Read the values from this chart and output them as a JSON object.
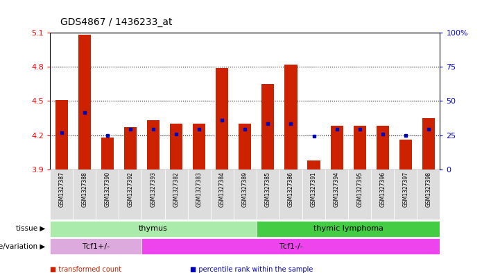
{
  "title": "GDS4867 / 1436233_at",
  "samples": [
    "GSM1327387",
    "GSM1327388",
    "GSM1327390",
    "GSM1327392",
    "GSM1327393",
    "GSM1327382",
    "GSM1327383",
    "GSM1327384",
    "GSM1327389",
    "GSM1327385",
    "GSM1327386",
    "GSM1327391",
    "GSM1327394",
    "GSM1327395",
    "GSM1327396",
    "GSM1327397",
    "GSM1327398"
  ],
  "red_values": [
    4.51,
    5.08,
    4.18,
    4.27,
    4.33,
    4.3,
    4.3,
    4.79,
    4.3,
    4.65,
    4.82,
    3.98,
    4.28,
    4.28,
    4.28,
    4.16,
    4.35
  ],
  "blue_values": [
    4.22,
    4.4,
    4.2,
    4.25,
    4.25,
    4.21,
    4.25,
    4.33,
    4.25,
    4.3,
    4.3,
    4.19,
    4.25,
    4.25,
    4.21,
    4.2,
    4.25
  ],
  "ylim_left": [
    3.9,
    5.1
  ],
  "ylim_right": [
    0,
    100
  ],
  "yticks_left": [
    3.9,
    4.2,
    4.5,
    4.8,
    5.1
  ],
  "yticks_right": [
    0,
    25,
    50,
    75,
    100
  ],
  "grid_lines": [
    4.2,
    4.5,
    4.8
  ],
  "tissue_groups": [
    {
      "label": "thymus",
      "start": 0,
      "end": 9,
      "color": "#aaeaaa"
    },
    {
      "label": "thymic lymphoma",
      "start": 9,
      "end": 17,
      "color": "#44cc44"
    }
  ],
  "genotype_groups": [
    {
      "label": "Tcf1+/-",
      "start": 0,
      "end": 4,
      "color": "#ddaadd"
    },
    {
      "label": "Tcf1-/-",
      "start": 4,
      "end": 17,
      "color": "#ee44ee"
    }
  ],
  "bar_color": "#cc2200",
  "dot_color": "#0000bb",
  "base_value": 3.9,
  "bar_width": 0.55,
  "tick_bg_color": "#dddddd",
  "legend_items": [
    {
      "color": "#cc2200",
      "label": "transformed count"
    },
    {
      "color": "#0000bb",
      "label": "percentile rank within the sample"
    }
  ],
  "tissue_row_label": "tissue",
  "genotype_row_label": "genotype/variation"
}
